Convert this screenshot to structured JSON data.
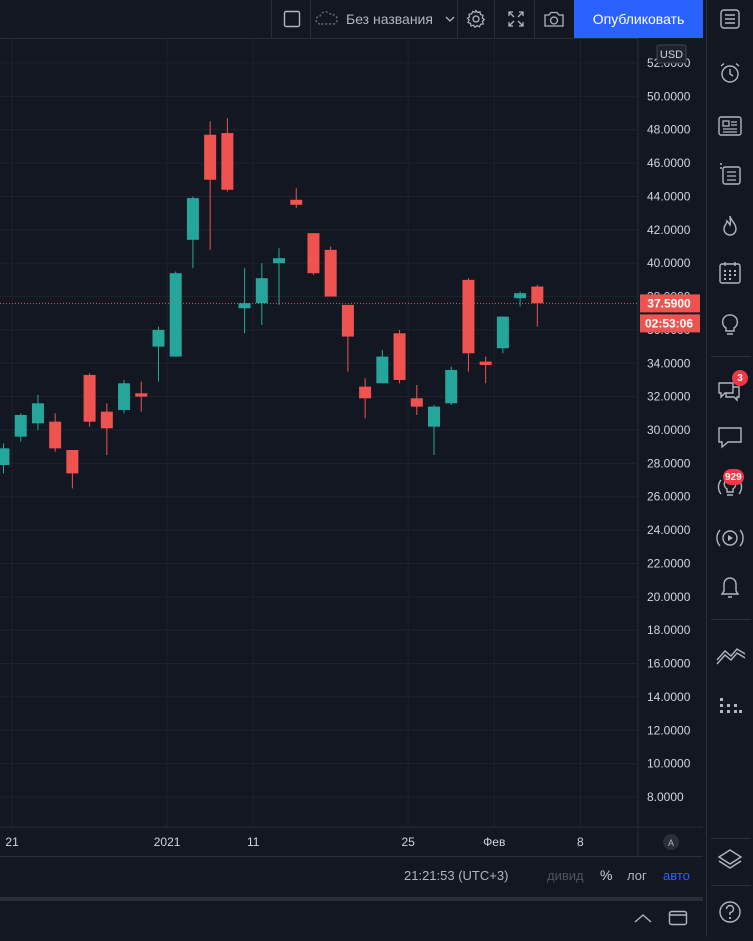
{
  "toolbar": {
    "layout_name": "Без названия",
    "publish_label": "Опубликовать"
  },
  "chart_data": {
    "type": "candlestick",
    "currency": "USD",
    "ylim": [
      6.0,
      53.0
    ],
    "y_ticks": [
      "8.0000",
      "10.0000",
      "12.0000",
      "14.0000",
      "16.0000",
      "18.0000",
      "20.0000",
      "22.0000",
      "24.0000",
      "26.0000",
      "28.0000",
      "30.0000",
      "32.0000",
      "34.0000",
      "36.0000",
      "38.0000",
      "40.0000",
      "42.0000",
      "44.0000",
      "46.0000",
      "48.0000",
      "50.0000",
      "52.0000"
    ],
    "x_ticks": [
      {
        "label": "21",
        "index": 0.5
      },
      {
        "label": "2021",
        "index": 9.5
      },
      {
        "label": "11",
        "index": 14.5
      },
      {
        "label": "25",
        "index": 23.5
      },
      {
        "label": "Фев",
        "index": 28.5
      },
      {
        "label": "8",
        "index": 33.5
      }
    ],
    "candles": [
      {
        "o": 27.9,
        "h": 29.2,
        "l": 27.4,
        "c": 28.9
      },
      {
        "o": 29.6,
        "h": 31.0,
        "l": 29.3,
        "c": 30.9
      },
      {
        "o": 30.4,
        "h": 32.1,
        "l": 30.0,
        "c": 31.6
      },
      {
        "o": 30.5,
        "h": 31.0,
        "l": 28.7,
        "c": 28.9
      },
      {
        "o": 28.8,
        "h": 28.8,
        "l": 26.5,
        "c": 27.4
      },
      {
        "o": 33.3,
        "h": 33.4,
        "l": 30.2,
        "c": 30.5
      },
      {
        "o": 31.1,
        "h": 31.6,
        "l": 28.5,
        "c": 30.1
      },
      {
        "o": 31.2,
        "h": 33.0,
        "l": 31.0,
        "c": 32.8
      },
      {
        "o": 32.2,
        "h": 32.9,
        "l": 31.1,
        "c": 32.0
      },
      {
        "o": 35.0,
        "h": 36.2,
        "l": 32.9,
        "c": 36.0
      },
      {
        "o": 34.4,
        "h": 39.5,
        "l": 34.4,
        "c": 39.4
      },
      {
        "o": 41.4,
        "h": 44.0,
        "l": 39.7,
        "c": 43.9
      },
      {
        "o": 47.7,
        "h": 48.5,
        "l": 40.8,
        "c": 45.0
      },
      {
        "o": 47.8,
        "h": 48.7,
        "l": 44.3,
        "c": 44.4
      },
      {
        "o": 37.3,
        "h": 39.7,
        "l": 35.8,
        "c": 37.6
      },
      {
        "o": 37.6,
        "h": 40.0,
        "l": 36.3,
        "c": 39.1
      },
      {
        "o": 40.0,
        "h": 40.9,
        "l": 37.5,
        "c": 40.3
      },
      {
        "o": 43.8,
        "h": 44.5,
        "l": 43.3,
        "c": 43.5
      },
      {
        "o": 41.8,
        "h": 41.8,
        "l": 39.3,
        "c": 39.4
      },
      {
        "o": 40.8,
        "h": 41.0,
        "l": 38.3,
        "c": 38.0
      },
      {
        "o": 37.5,
        "h": 37.5,
        "l": 33.5,
        "c": 35.6
      },
      {
        "o": 32.6,
        "h": 33.1,
        "l": 30.7,
        "c": 31.9
      },
      {
        "o": 32.8,
        "h": 34.8,
        "l": 32.8,
        "c": 34.4
      },
      {
        "o": 35.8,
        "h": 36.0,
        "l": 32.8,
        "c": 33.0
      },
      {
        "o": 31.9,
        "h": 32.7,
        "l": 30.9,
        "c": 31.4
      },
      {
        "o": 30.2,
        "h": 31.5,
        "l": 28.5,
        "c": 31.4
      },
      {
        "o": 31.6,
        "h": 33.8,
        "l": 31.5,
        "c": 33.6
      },
      {
        "o": 39.0,
        "h": 39.1,
        "l": 33.5,
        "c": 34.6
      },
      {
        "o": 34.1,
        "h": 34.4,
        "l": 32.8,
        "c": 33.9
      },
      {
        "o": 34.9,
        "h": 36.8,
        "l": 34.6,
        "c": 36.8
      },
      {
        "o": 37.9,
        "h": 38.3,
        "l": 37.4,
        "c": 38.2
      },
      {
        "o": 38.6,
        "h": 38.7,
        "l": 36.2,
        "c": 37.6
      }
    ],
    "last_price_label": "37.5900",
    "countdown_label": "02:53:06",
    "last_price": 37.59,
    "up_color": "#26a69a",
    "down_color": "#ef5350",
    "grid": true,
    "scale_mode_label": "A"
  },
  "status": {
    "time": "21:21:53 (UTC+3)",
    "dividends": "дивид",
    "percent": "%",
    "log": "лог",
    "auto": "авто"
  },
  "badges": {
    "chat_count": "3",
    "ideas_count": "929"
  }
}
